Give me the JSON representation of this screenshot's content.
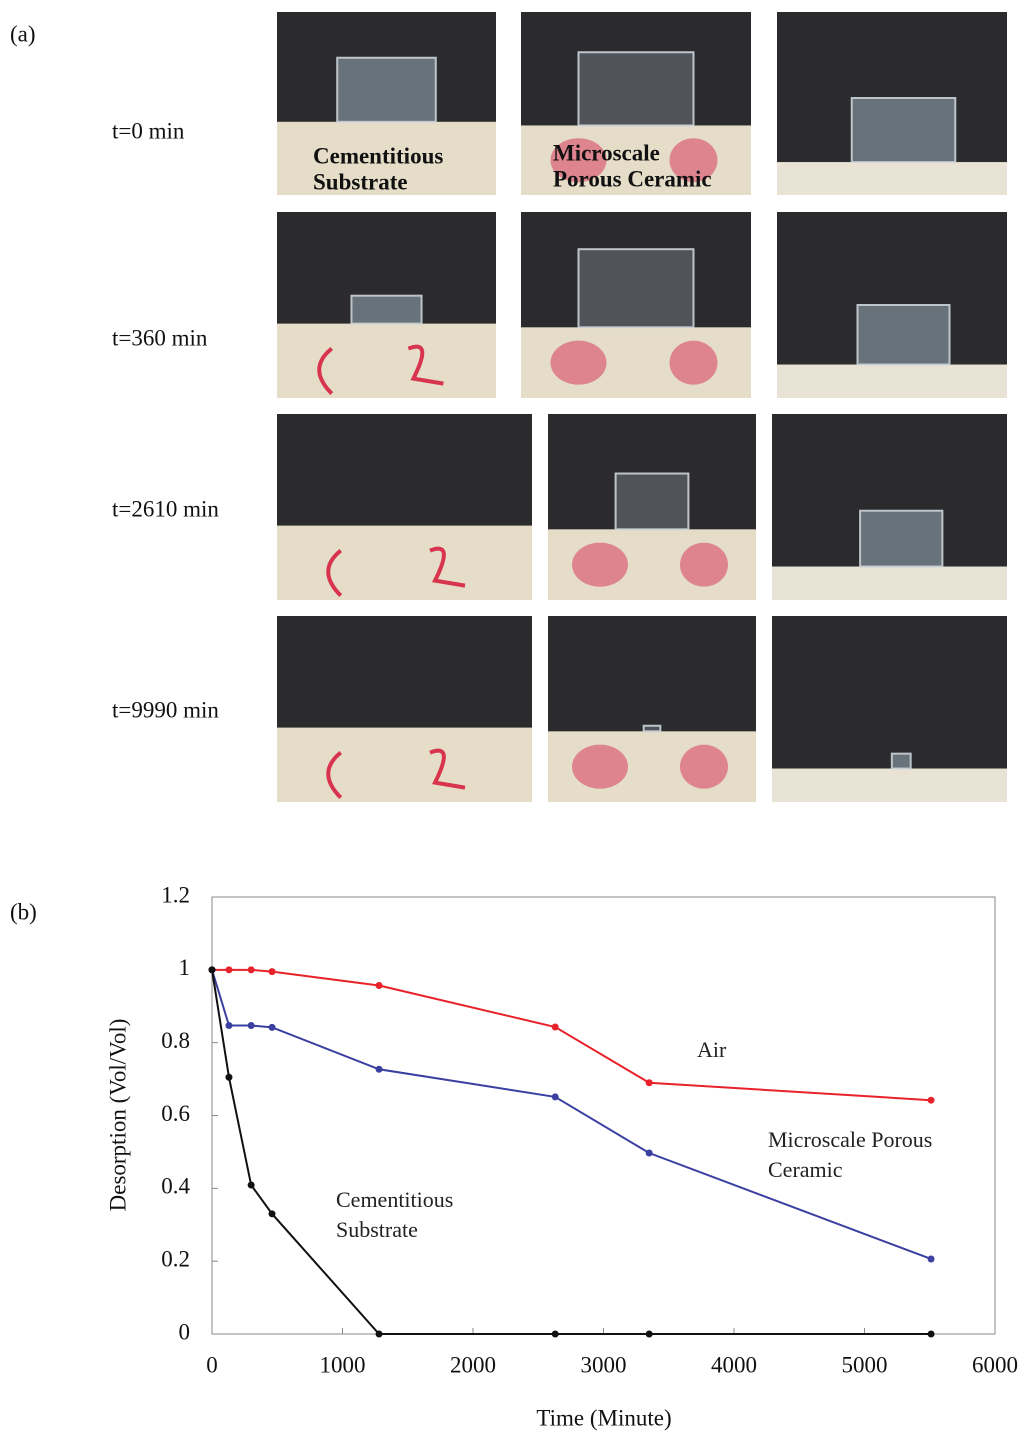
{
  "panel_a": {
    "label": "(a)",
    "rows": [
      "t=0 min",
      "t=360 min",
      "t=2610 min",
      "t=9990 min"
    ],
    "photo_labels": [
      [
        "Cementitious",
        "Substrate"
      ],
      [
        "Microscale",
        "Porous Ceramic"
      ]
    ]
  },
  "panel_b": {
    "label": "(b)"
  },
  "chart_data": {
    "type": "line",
    "x_label": "Time (Minute)",
    "y_label": "Desorption (Vol/Vol)",
    "x": [
      0,
      130,
      300,
      460,
      1280,
      2630,
      3350,
      5510
    ],
    "series": [
      {
        "name": "Air",
        "color": "#e8222a",
        "values": [
          1.0,
          1.0,
          1.0,
          0.995,
          0.957,
          0.843,
          0.69,
          0.642
        ]
      },
      {
        "name": "Microscale Porous Ceramic",
        "color": "#3b3fa0",
        "values": [
          1.0,
          0.847,
          0.847,
          0.842,
          0.727,
          0.651,
          0.497,
          0.206
        ]
      },
      {
        "name": "Cementitious Substrate",
        "color": "#111111",
        "values": [
          1.0,
          0.705,
          0.409,
          0.33,
          0,
          0,
          0,
          0
        ]
      }
    ],
    "xlim": [
      0,
      6000
    ],
    "xticks": [
      0,
      1000,
      2000,
      3000,
      4000,
      5000,
      6000
    ],
    "ylim": [
      0,
      1.2
    ],
    "yticks": [
      0,
      0.2,
      0.4,
      0.6,
      0.8,
      1,
      1.2
    ],
    "grid": false
  }
}
